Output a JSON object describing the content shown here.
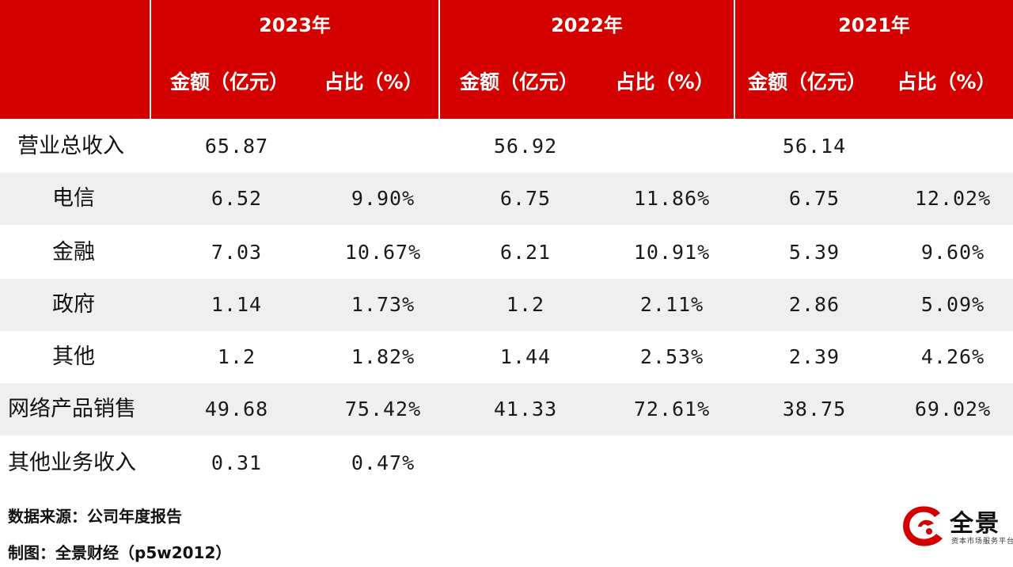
{
  "header": {
    "years": [
      "2023年",
      "2022年",
      "2021年"
    ],
    "amount_label": "金额（亿元）",
    "share_label": "占比（%）"
  },
  "rows": [
    {
      "label": "营业总收入",
      "cells": [
        "65.87",
        "",
        "56.92",
        "",
        "56.14",
        ""
      ]
    },
    {
      "label": "电信",
      "cells": [
        "6.52",
        "9.90%",
        "6.75",
        "11.86%",
        "6.75",
        "12.02%"
      ]
    },
    {
      "label": "金融",
      "cells": [
        "7.03",
        "10.67%",
        "6.21",
        "10.91%",
        "5.39",
        "9.60%"
      ]
    },
    {
      "label": "政府",
      "cells": [
        "1.14",
        "1.73%",
        "1.2",
        "2.11%",
        "2.86",
        "5.09%"
      ]
    },
    {
      "label": "其他",
      "cells": [
        "1.2",
        "1.82%",
        "1.44",
        "2.53%",
        "2.39",
        "4.26%"
      ]
    },
    {
      "label": "网络产品销售",
      "cells": [
        "49.68",
        "75.42%",
        "41.33",
        "72.61%",
        "38.75",
        "69.02%"
      ]
    },
    {
      "label": "其他业务收入",
      "cells": [
        "0.31",
        "0.47%",
        "",
        "",
        "",
        ""
      ]
    }
  ],
  "footer": {
    "source": "数据来源：公司年度报告",
    "credit": "制图：全景财经（p5w2012）"
  },
  "logo": {
    "name": "全景",
    "tagline": "资本市场服务平台"
  },
  "colors": {
    "header_bg": "#d40000",
    "header_text": "#ffffff",
    "row_shade": "#efefef",
    "logo_red": "#d40000"
  }
}
